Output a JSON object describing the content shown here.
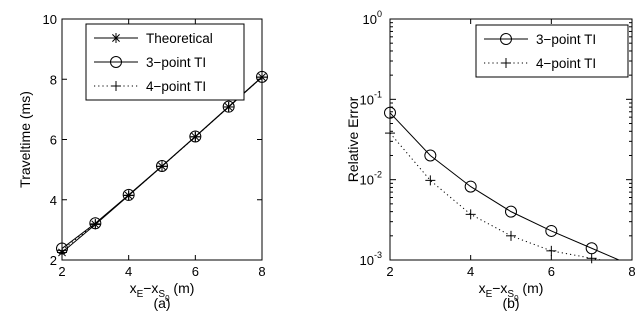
{
  "chart_data": [
    {
      "type": "line",
      "panel_label": "(a)",
      "ylabel": "Traveltime (ms)",
      "xlabel": "x_E−x_S0 (m)",
      "xlim": [
        2,
        8
      ],
      "ylim": [
        2,
        10
      ],
      "yscale": "linear",
      "x_ticks": [
        2,
        4,
        6,
        8
      ],
      "y_ticks": [
        2,
        4,
        6,
        8,
        10
      ],
      "x": [
        2,
        3,
        4,
        5,
        6,
        7,
        8
      ],
      "series": [
        {
          "name": "Theoretical",
          "marker": "asterisk",
          "line": "solid",
          "values": [
            2.25,
            3.18,
            4.14,
            5.11,
            6.09,
            7.08,
            8.07
          ]
        },
        {
          "name": "3−point TI",
          "marker": "circle",
          "line": "solid",
          "values": [
            2.38,
            3.22,
            4.16,
            5.12,
            6.1,
            7.09,
            8.08
          ]
        },
        {
          "name": "4−point TI",
          "marker": "plus",
          "line": "dotted",
          "values": [
            2.32,
            3.2,
            4.15,
            5.11,
            6.09,
            7.08,
            8.07
          ]
        }
      ],
      "legend": "top-left"
    },
    {
      "type": "line",
      "panel_label": "(b)",
      "ylabel": "Relative Error",
      "xlabel": "x_E−x_S0 (m)",
      "xlim": [
        2,
        8
      ],
      "ylim": [
        0.001,
        1
      ],
      "yscale": "log",
      "x_ticks": [
        2,
        4,
        6,
        8
      ],
      "y_tick_exponents": [
        -3,
        -2,
        -1,
        0
      ],
      "x": [
        2,
        3,
        4,
        5,
        6,
        7
      ],
      "series": [
        {
          "name": "3−point TI",
          "marker": "circle",
          "line": "solid",
          "values": [
            0.068,
            0.02,
            0.0082,
            0.004,
            0.0023,
            0.0014
          ]
        },
        {
          "name": "4−point TI",
          "marker": "plus",
          "line": "dotted",
          "values": [
            0.038,
            0.0098,
            0.0037,
            0.002,
            0.0013,
            0.00105
          ]
        }
      ],
      "legend": "top-right"
    }
  ]
}
